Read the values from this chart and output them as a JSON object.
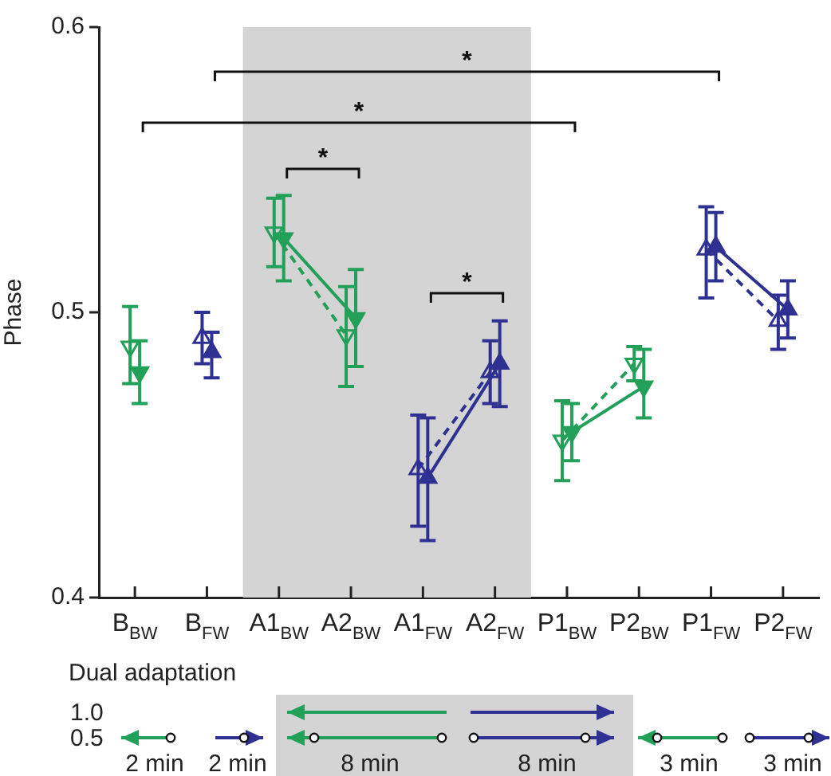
{
  "chart_data": {
    "type": "line",
    "ylabel": "Phase",
    "categories": [
      "B$_{BW}$",
      "B$_{FW}$",
      "A1$_{BW}$",
      "A2$_{BW}$",
      "A1$_{FW}$",
      "A2$_{FW}$",
      "P1$_{BW}$",
      "P2$_{BW}$",
      "P1$_{FW}$",
      "P2$_{FW}$"
    ],
    "series": [
      {
        "color": "#22a05a",
        "line_style": "dashed",
        "marker": "triangle",
        "values": [
          0.488,
          null,
          0.528,
          0.492,
          null,
          null,
          0.455,
          0.482,
          null,
          null
        ],
        "errors": [
          [
            0.475,
            0.502
          ],
          null,
          [
            0.516,
            0.54
          ],
          [
            0.474,
            0.509
          ],
          null,
          null,
          [
            0.441,
            0.469
          ],
          [
            0.476,
            0.488
          ],
          null,
          null
        ]
      },
      {
        "color": "#22a05a",
        "line_style": "solid",
        "marker": "triangle",
        "values": [
          0.479,
          null,
          0.526,
          0.498,
          null,
          null,
          0.458,
          0.474,
          null,
          null
        ],
        "errors": [
          [
            0.468,
            0.49
          ],
          null,
          [
            0.511,
            0.541
          ],
          [
            0.481,
            0.515
          ],
          null,
          null,
          [
            0.448,
            0.468
          ],
          [
            0.463,
            0.487
          ],
          null,
          null
        ]
      },
      {
        "color": "#2e3192",
        "line_style": "dashed",
        "marker": "triangle",
        "values": [
          null,
          0.491,
          null,
          null,
          0.445,
          0.479,
          null,
          null,
          0.522,
          0.497
        ],
        "errors": [
          null,
          [
            0.482,
            0.5
          ],
          null,
          null,
          [
            0.425,
            0.464
          ],
          [
            0.468,
            0.49
          ],
          null,
          null,
          [
            0.505,
            0.537
          ],
          [
            0.487,
            0.506
          ]
        ]
      },
      {
        "color": "#2e3192",
        "line_style": "solid",
        "marker": "triangle",
        "values": [
          null,
          0.486,
          null,
          null,
          0.442,
          0.482,
          null,
          null,
          0.523,
          0.501
        ],
        "errors": [
          null,
          [
            0.477,
            0.493
          ],
          null,
          null,
          [
            0.42,
            0.463
          ],
          [
            0.467,
            0.497
          ],
          null,
          null,
          [
            0.511,
            0.535
          ],
          [
            0.491,
            0.511
          ]
        ]
      }
    ],
    "ylim": [
      0.4,
      0.6
    ],
    "yticks": [
      0.4,
      0.5,
      0.6
    ],
    "grid": false,
    "legend": false,
    "bands": [
      {
        "axis": "x",
        "from": "A1$_{BW}$",
        "to": "A2$_{FW}$",
        "color": "#d4d4d4"
      }
    ],
    "annotations": [
      "*",
      "*",
      "*",
      "*",
      "Dual adaptation",
      "1.0",
      "0.5",
      "2 min",
      "2 min",
      "8 min",
      "8 min",
      "3 min",
      "3 min"
    ]
  }
}
